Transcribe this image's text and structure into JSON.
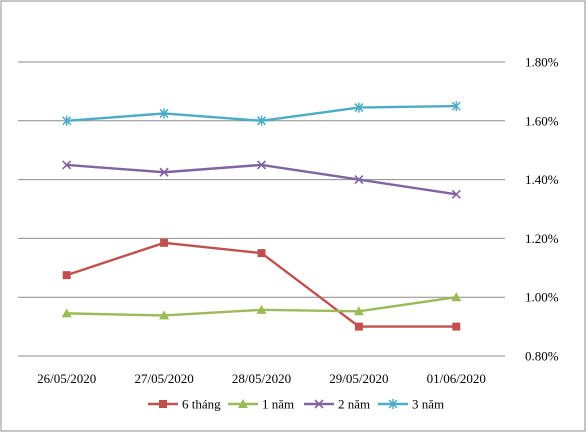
{
  "chart_data": {
    "type": "line",
    "categories": [
      "26/05/2020",
      "27/05/2020",
      "28/05/2020",
      "29/05/2020",
      "01/06/2020"
    ],
    "y_ticks": [
      "0.80%",
      "1.00%",
      "1.20%",
      "1.40%",
      "1.60%",
      "1.80%"
    ],
    "ylim": [
      0.8,
      1.8
    ],
    "y_axis_position": "right",
    "grid": true,
    "legend_position": "bottom",
    "series": [
      {
        "name": "6 tháng",
        "color": "#c0504d",
        "marker": "square",
        "values": [
          1.075,
          1.185,
          1.15,
          0.9,
          0.9
        ]
      },
      {
        "name": "1 năm",
        "color": "#9bbb59",
        "marker": "triangle",
        "values": [
          0.945,
          0.938,
          0.957,
          0.952,
          1.0
        ]
      },
      {
        "name": "2 năm",
        "color": "#8064a2",
        "marker": "x",
        "values": [
          1.45,
          1.425,
          1.45,
          1.4,
          1.35
        ]
      },
      {
        "name": "3 năm",
        "color": "#4bacc6",
        "marker": "asterisk",
        "values": [
          1.6,
          1.625,
          1.6,
          1.645,
          1.65
        ]
      }
    ]
  }
}
